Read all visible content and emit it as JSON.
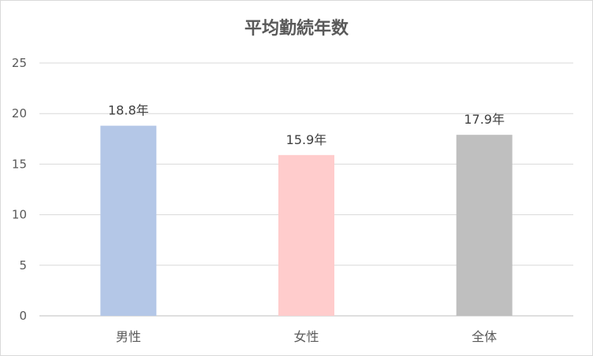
{
  "chart_data": {
    "type": "bar",
    "title": "平均勤続年数",
    "categories": [
      "男性",
      "女性",
      "全体"
    ],
    "values": [
      18.8,
      15.9,
      17.9
    ],
    "data_labels": [
      "18.8年",
      "15.9年",
      "17.9年"
    ],
    "colors": [
      "#b4c7e7",
      "#ffcccc",
      "#bfbfbf"
    ],
    "ylim": [
      0,
      25
    ],
    "yticks": [
      "0",
      "5",
      "10",
      "15",
      "20",
      "25"
    ],
    "grid": true,
    "legend": "none"
  }
}
